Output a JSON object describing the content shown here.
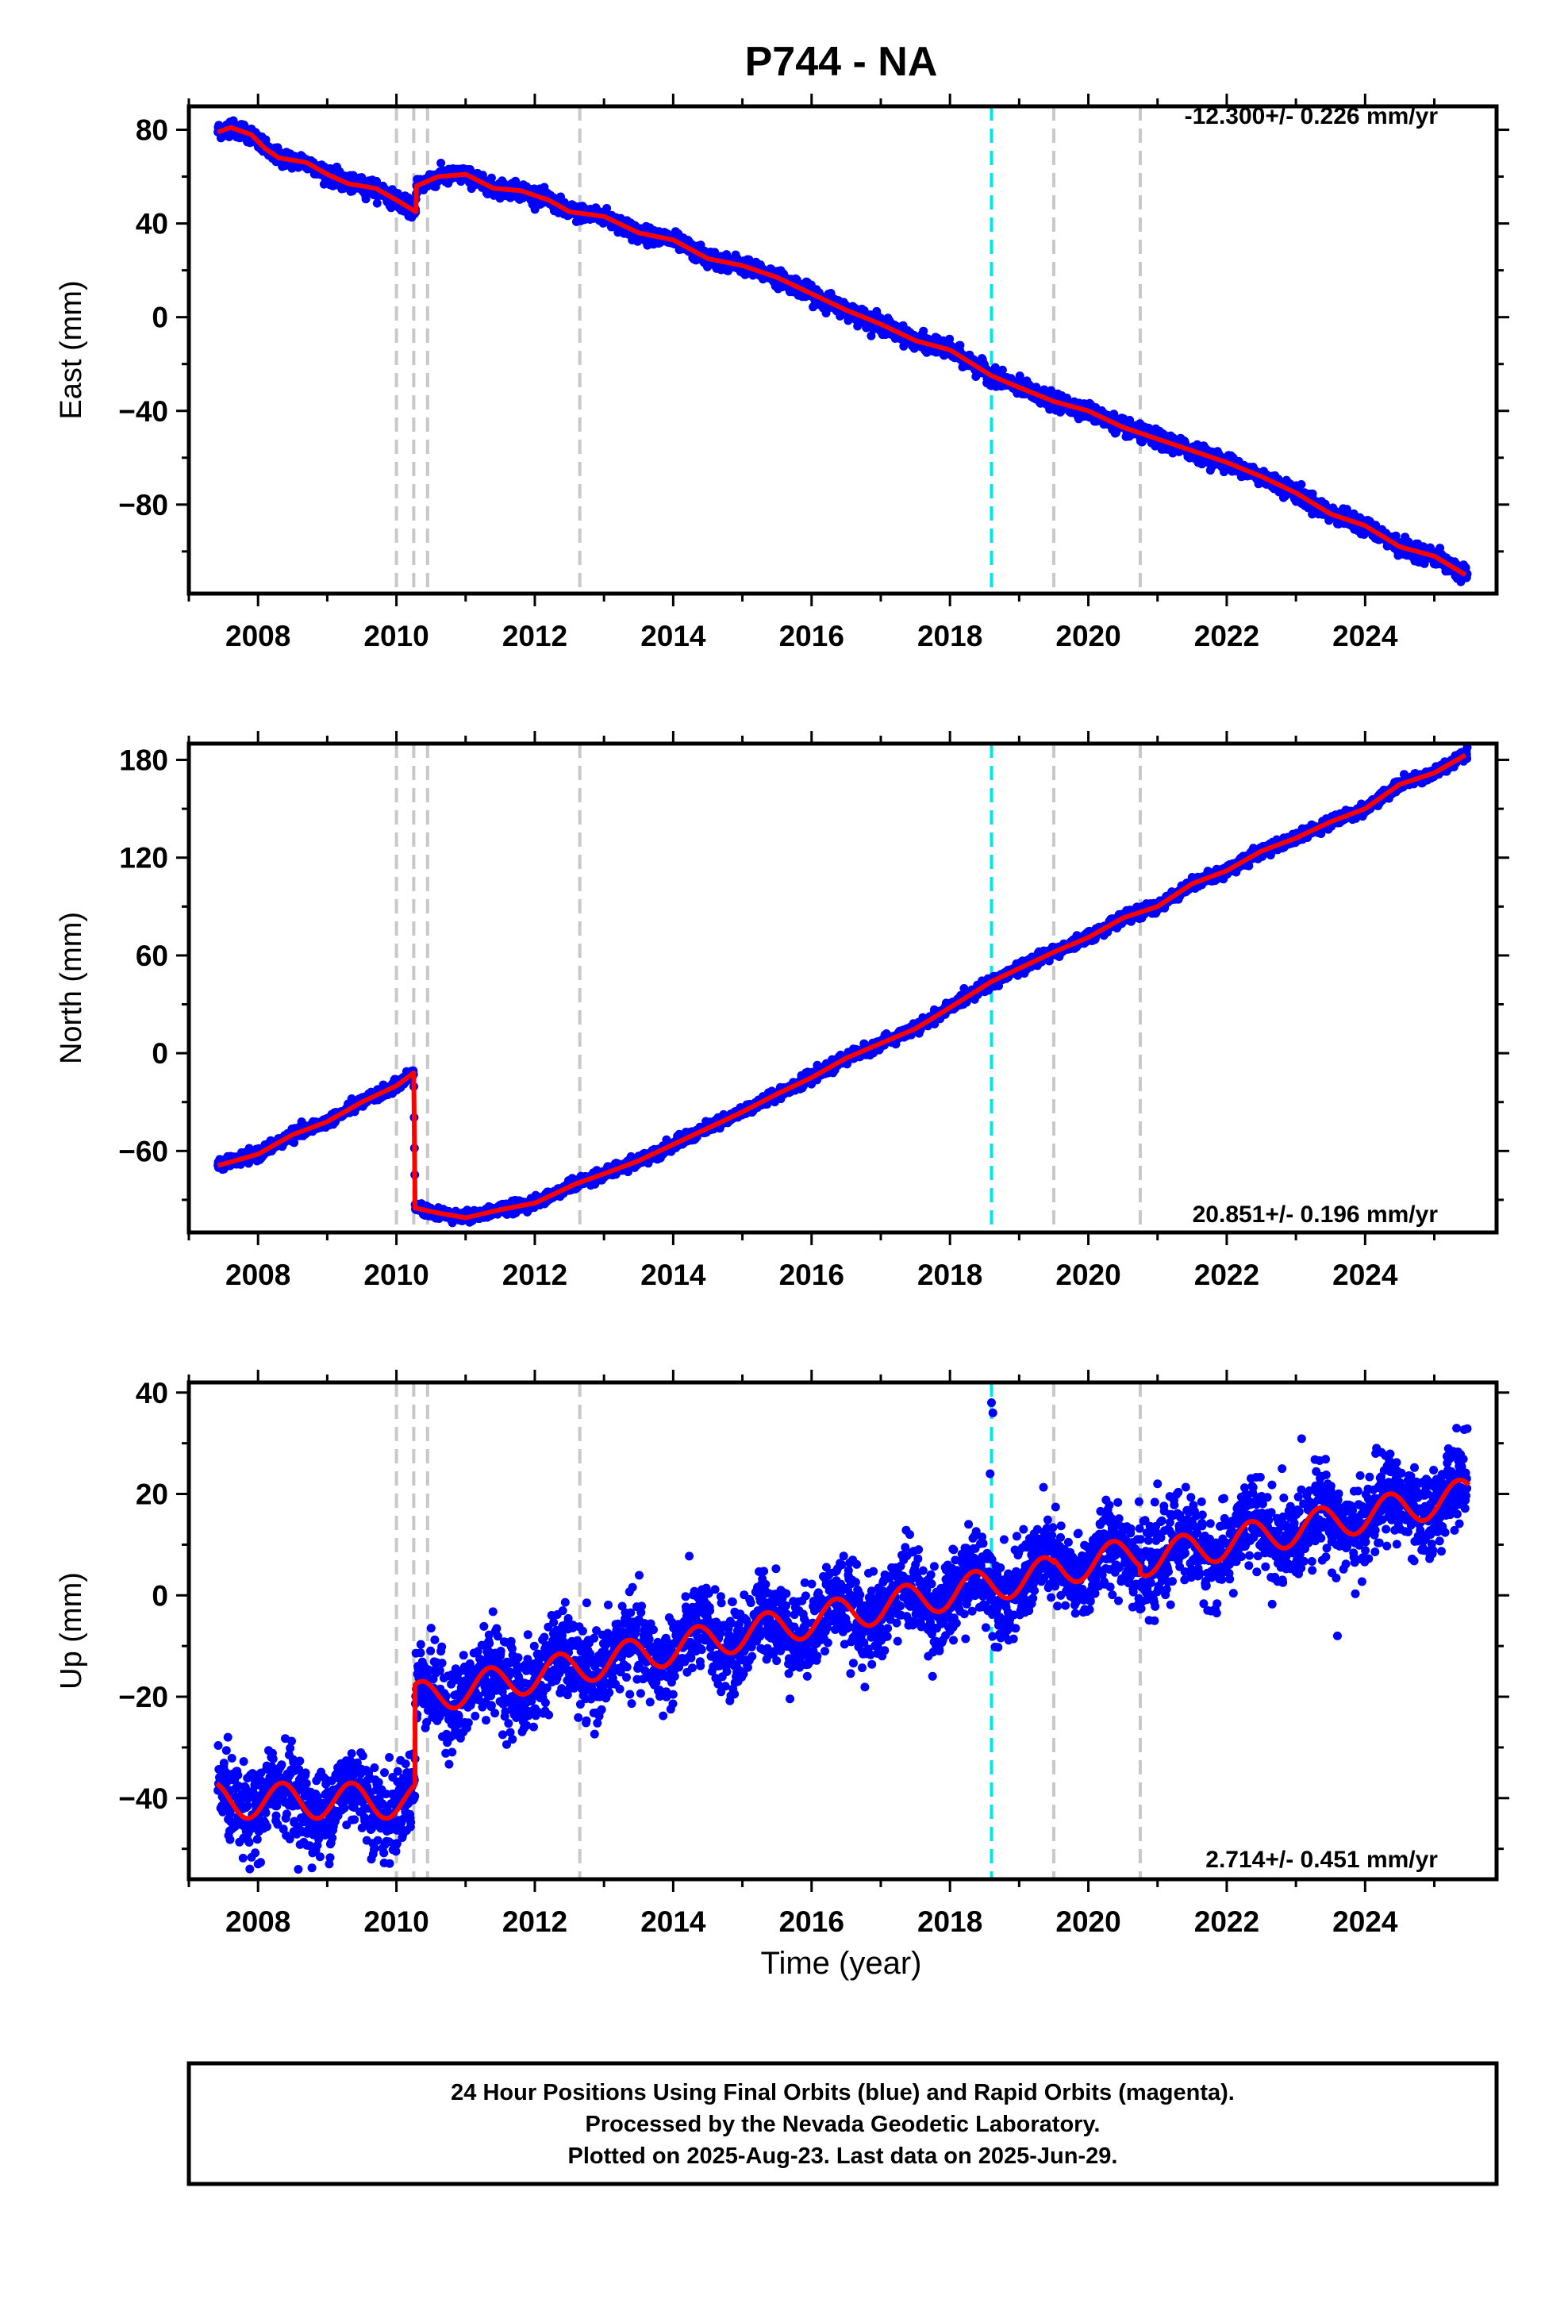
{
  "title": "P744 - NA",
  "xlabel": "Time (year)",
  "footer": [
    "24 Hour Positions Using Final Orbits (blue) and Rapid Orbits (magenta).",
    "Processed by the Nevada Geodetic Laboratory.",
    "Plotted on 2025-Aug-23. Last data on 2025-Jun-29."
  ],
  "colors": {
    "data": "#0000ff",
    "model": "#ff0000",
    "offset_lines": "#c8c8c8",
    "highlight_line": "#00e5e5",
    "frame": "#000000"
  },
  "chart_data": [
    {
      "type": "scatter",
      "component": "East",
      "ylabel": "East (mm)",
      "rate_text": "-12.300+/- 0.226 mm/yr",
      "rate_position": "top-right",
      "xlim": [
        2007.0,
        2025.9
      ],
      "ylim": [
        -118,
        90
      ],
      "xticks": [
        2008,
        2010,
        2012,
        2014,
        2016,
        2018,
        2020,
        2022,
        2024
      ],
      "yticks": [
        80,
        40,
        0,
        -40,
        -80
      ],
      "grid": false,
      "offset_epochs": [
        2010.0,
        2010.25,
        2010.45,
        2012.65,
        2019.5,
        2020.75
      ],
      "highlight_epochs": [
        2018.6
      ],
      "series_model_points": [
        [
          2007.42,
          79
        ],
        [
          2007.6,
          81
        ],
        [
          2007.9,
          78
        ],
        [
          2008.1,
          72
        ],
        [
          2008.3,
          68
        ],
        [
          2008.7,
          66
        ],
        [
          2009.0,
          61
        ],
        [
          2009.3,
          57
        ],
        [
          2009.7,
          55
        ],
        [
          2010.0,
          50
        ],
        [
          2010.28,
          45
        ],
        [
          2010.29,
          56
        ],
        [
          2010.6,
          60
        ],
        [
          2011.0,
          61
        ],
        [
          2011.4,
          55
        ],
        [
          2011.8,
          54
        ],
        [
          2012.2,
          50
        ],
        [
          2012.5,
          45
        ],
        [
          2013.0,
          43
        ],
        [
          2013.5,
          36
        ],
        [
          2014.0,
          33
        ],
        [
          2014.5,
          25
        ],
        [
          2015.0,
          22
        ],
        [
          2015.5,
          17
        ],
        [
          2016.0,
          10
        ],
        [
          2016.5,
          3
        ],
        [
          2017.0,
          -3
        ],
        [
          2017.5,
          -10
        ],
        [
          2018.0,
          -14
        ],
        [
          2018.6,
          -25
        ],
        [
          2019.0,
          -30
        ],
        [
          2019.5,
          -36
        ],
        [
          2020.0,
          -40
        ],
        [
          2020.5,
          -47
        ],
        [
          2021.0,
          -52
        ],
        [
          2021.5,
          -57
        ],
        [
          2022.0,
          -62
        ],
        [
          2022.5,
          -68
        ],
        [
          2023.0,
          -75
        ],
        [
          2023.5,
          -84
        ],
        [
          2024.0,
          -89
        ],
        [
          2024.5,
          -98
        ],
        [
          2025.0,
          -102
        ],
        [
          2025.45,
          -110
        ]
      ]
    },
    {
      "type": "scatter",
      "component": "North",
      "ylabel": "North (mm)",
      "rate_text": "20.851+/- 0.196 mm/yr",
      "rate_position": "bottom-right",
      "xlim": [
        2007.0,
        2025.9
      ],
      "ylim": [
        -110,
        190
      ],
      "xticks": [
        2008,
        2010,
        2012,
        2014,
        2016,
        2018,
        2020,
        2022,
        2024
      ],
      "yticks": [
        180,
        120,
        60,
        0,
        -60
      ],
      "grid": false,
      "offset_epochs": [
        2010.0,
        2010.25,
        2010.45,
        2012.65,
        2019.5,
        2020.75
      ],
      "highlight_epochs": [
        2018.6
      ],
      "series_model_points": [
        [
          2007.42,
          -69
        ],
        [
          2008.0,
          -62
        ],
        [
          2008.5,
          -50
        ],
        [
          2009.0,
          -42
        ],
        [
          2009.5,
          -30
        ],
        [
          2010.0,
          -20
        ],
        [
          2010.25,
          -12
        ],
        [
          2010.27,
          -95
        ],
        [
          2010.6,
          -98
        ],
        [
          2011.0,
          -101
        ],
        [
          2011.5,
          -96
        ],
        [
          2012.0,
          -92
        ],
        [
          2012.6,
          -80
        ],
        [
          2013.0,
          -74
        ],
        [
          2013.5,
          -66
        ],
        [
          2014.0,
          -56
        ],
        [
          2014.5,
          -46
        ],
        [
          2015.0,
          -36
        ],
        [
          2015.5,
          -25
        ],
        [
          2016.0,
          -15
        ],
        [
          2016.5,
          -3
        ],
        [
          2017.0,
          6
        ],
        [
          2017.5,
          15
        ],
        [
          2018.0,
          28
        ],
        [
          2018.6,
          44
        ],
        [
          2019.0,
          52
        ],
        [
          2019.5,
          62
        ],
        [
          2020.0,
          71
        ],
        [
          2020.5,
          83
        ],
        [
          2021.0,
          90
        ],
        [
          2021.5,
          104
        ],
        [
          2022.0,
          112
        ],
        [
          2022.5,
          124
        ],
        [
          2023.0,
          132
        ],
        [
          2023.5,
          142
        ],
        [
          2024.0,
          150
        ],
        [
          2024.5,
          165
        ],
        [
          2025.0,
          172
        ],
        [
          2025.45,
          183
        ]
      ]
    },
    {
      "type": "scatter",
      "component": "Up",
      "ylabel": "Up (mm)",
      "rate_text": "2.714+/- 0.451 mm/yr",
      "rate_position": "bottom-right",
      "xlim": [
        2007.0,
        2025.9
      ],
      "ylim": [
        -56,
        42
      ],
      "xticks": [
        2008,
        2010,
        2012,
        2014,
        2016,
        2018,
        2020,
        2022,
        2024
      ],
      "yticks": [
        40,
        20,
        0,
        -20,
        -40
      ],
      "grid": false,
      "offset_epochs": [
        2010.0,
        2010.25,
        2010.45,
        2012.65,
        2019.5,
        2020.75
      ],
      "highlight_epochs": [
        2018.6
      ],
      "model_segments": [
        {
          "t0": 2007.4,
          "t1": 2010.27,
          "offset": -40.5,
          "rate": 0,
          "amp": 3.5,
          "phase": 0.1
        },
        {
          "t0": 2010.27,
          "t1": 2019.5,
          "offset": -20.5,
          "rate": 2.714,
          "amp": 3.3,
          "phase": 0.1
        },
        {
          "t0": 2019.5,
          "t1": 2020.75,
          "offset": -20.0,
          "rate": 2.714,
          "amp": 3.3,
          "phase": 0.1
        },
        {
          "t0": 2020.75,
          "t1": 2025.5,
          "offset": -21.5,
          "rate": 2.714,
          "amp": 3.3,
          "phase": 0.1
        }
      ],
      "outliers": [
        [
          2018.6,
          38
        ],
        [
          2018.62,
          36
        ],
        [
          2018.58,
          24
        ],
        [
          2021.0,
          22
        ],
        [
          2022.8,
          25
        ],
        [
          2023.6,
          -8
        ],
        [
          2008.0,
          -53
        ]
      ]
    }
  ]
}
